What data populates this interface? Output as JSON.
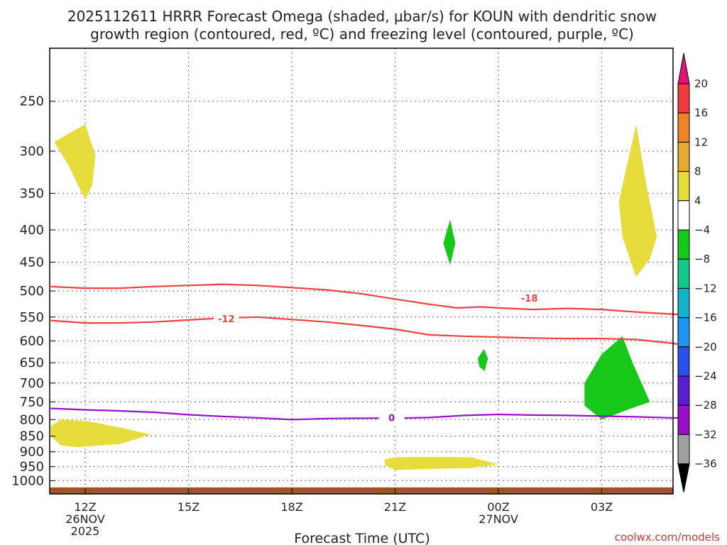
{
  "title_line1": "2025112611 HRRR Forecast Omega (shaded, μbar/s) for KOUN with dendritic snow",
  "title_line2": "growth region (contoured, red, ºC) and freezing level (contoured, purple, ºC)",
  "credit": "coolwx.com/models",
  "colors": {
    "isotherm": "#f04040",
    "freezing": "#9a10c8",
    "ground": "#a0522d",
    "omega_pos": "#e6dc3c",
    "omega_neg": "#18c818"
  },
  "chart_data": {
    "type": "heatmap",
    "title": "2025112611 HRRR Forecast Omega (shaded, μbar/s) for KOUN with dendritic snow growth region (contoured, red, ºC) and freezing level (contoured, purple, ºC)",
    "xlabel": "Forecast Time (UTC)",
    "ylabel": "",
    "xlim": [
      11,
      29.5
    ],
    "ylim": [
      1050,
      200
    ],
    "grid": true,
    "x_ticks": [
      {
        "x": 12,
        "label": "12Z",
        "sub1": "26NOV",
        "sub2": "2025"
      },
      {
        "x": 15,
        "label": "15Z",
        "sub1": "",
        "sub2": ""
      },
      {
        "x": 18,
        "label": "18Z",
        "sub1": "",
        "sub2": ""
      },
      {
        "x": 21,
        "label": "21Z",
        "sub1": "",
        "sub2": ""
      },
      {
        "x": 24,
        "label": "00Z",
        "sub1": "27NOV",
        "sub2": ""
      },
      {
        "x": 27,
        "label": "03Z",
        "sub1": "",
        "sub2": ""
      }
    ],
    "y_ticks": [
      250,
      300,
      350,
      400,
      450,
      500,
      550,
      600,
      650,
      700,
      750,
      800,
      850,
      900,
      950,
      1000
    ],
    "colorbar": {
      "levels": [
        20,
        16,
        12,
        8,
        4,
        -4,
        -8,
        -12,
        -16,
        -20,
        -24,
        -28,
        -32,
        -36
      ],
      "colors": [
        "#f03c3c",
        "#f08228",
        "#e6aa32",
        "#e6dc3c",
        "#ffffff",
        "#18c818",
        "#14c88c",
        "#14b4c8",
        "#1e96f0",
        "#2850f0",
        "#5a1ed2",
        "#9a10c8",
        "#a0a0a0"
      ],
      "top_color": "#e0147a",
      "bottom_color": "#000000"
    },
    "contours": [
      {
        "level": -18,
        "color": "#f04040",
        "label": "-18",
        "label_at": [
          24.9,
          513
        ],
        "points": [
          [
            11,
            492
          ],
          [
            12,
            495
          ],
          [
            13,
            495
          ],
          [
            14,
            492
          ],
          [
            15,
            490
          ],
          [
            16,
            488
          ],
          [
            17,
            490
          ],
          [
            18,
            494
          ],
          [
            19,
            498
          ],
          [
            20,
            505
          ],
          [
            21,
            515
          ],
          [
            22,
            525
          ],
          [
            22.8,
            532
          ],
          [
            23.5,
            530
          ],
          [
            24,
            532
          ],
          [
            25,
            535
          ],
          [
            26,
            533
          ],
          [
            27,
            535
          ],
          [
            28,
            540
          ],
          [
            29,
            544
          ],
          [
            29.5,
            546
          ]
        ]
      },
      {
        "level": -12,
        "color": "#f04040",
        "label": "-12",
        "label_at": [
          16.1,
          553
        ],
        "points": [
          [
            11,
            557
          ],
          [
            12,
            562
          ],
          [
            13,
            562
          ],
          [
            14,
            560
          ],
          [
            15,
            556
          ],
          [
            16,
            552
          ],
          [
            17,
            550
          ],
          [
            18,
            555
          ],
          [
            19,
            560
          ],
          [
            20,
            567
          ],
          [
            21,
            575
          ],
          [
            22,
            587
          ],
          [
            23,
            590
          ],
          [
            24,
            592
          ],
          [
            25,
            594
          ],
          [
            26,
            595
          ],
          [
            27,
            595
          ],
          [
            28,
            597
          ],
          [
            29,
            605
          ],
          [
            29.5,
            610
          ]
        ]
      },
      {
        "level": 0,
        "color": "#9a10c8",
        "label": "0",
        "label_at": [
          20.9,
          794
        ],
        "points": [
          [
            11,
            768
          ],
          [
            12,
            772
          ],
          [
            13,
            775
          ],
          [
            14,
            779
          ],
          [
            15,
            786
          ],
          [
            16,
            791
          ],
          [
            17,
            795
          ],
          [
            18,
            800
          ],
          [
            19,
            797
          ],
          [
            20,
            796
          ],
          [
            21,
            796
          ],
          [
            22,
            794
          ],
          [
            23,
            788
          ],
          [
            24,
            785
          ],
          [
            25,
            787
          ],
          [
            26,
            788
          ],
          [
            27,
            790
          ],
          [
            28,
            792
          ],
          [
            29,
            795
          ],
          [
            29.5,
            796
          ]
        ]
      }
    ],
    "shaded_areas": [
      {
        "level": 4,
        "points": [
          [
            11.1,
            290
          ],
          [
            12,
            272
          ],
          [
            12.3,
            305
          ],
          [
            12.2,
            340
          ],
          [
            12,
            358
          ],
          [
            11.5,
            315
          ]
        ]
      },
      {
        "level": 4,
        "points": [
          [
            28,
            272
          ],
          [
            28.3,
            340
          ],
          [
            28.6,
            410
          ],
          [
            28.4,
            445
          ],
          [
            28,
            475
          ],
          [
            27.6,
            410
          ],
          [
            27.5,
            360
          ]
        ]
      },
      {
        "level": 4,
        "points": [
          [
            11,
            820
          ],
          [
            11.3,
            800
          ],
          [
            12.1,
            805
          ],
          [
            13,
            823
          ],
          [
            13.9,
            845
          ],
          [
            13,
            875
          ],
          [
            11.8,
            885
          ],
          [
            11.3,
            880
          ],
          [
            11,
            850
          ]
        ]
      },
      {
        "level": 4,
        "points": [
          [
            20.7,
            925
          ],
          [
            21,
            918
          ],
          [
            22,
            917
          ],
          [
            23.2,
            918
          ],
          [
            24,
            942
          ],
          [
            23.2,
            955
          ],
          [
            22,
            958
          ],
          [
            21,
            962
          ],
          [
            20.7,
            945
          ]
        ]
      },
      {
        "level": -4,
        "points": [
          [
            22.4,
            420
          ],
          [
            22.6,
            385
          ],
          [
            22.75,
            420
          ],
          [
            22.6,
            455
          ]
        ]
      },
      {
        "level": -4,
        "points": [
          [
            23.4,
            640
          ],
          [
            23.58,
            618
          ],
          [
            23.7,
            640
          ],
          [
            23.6,
            670
          ],
          [
            23.45,
            660
          ]
        ]
      },
      {
        "level": -4,
        "points": [
          [
            26.5,
            700
          ],
          [
            27,
            630
          ],
          [
            27.6,
            590
          ],
          [
            27.9,
            650
          ],
          [
            28.4,
            750
          ],
          [
            27.8,
            770
          ],
          [
            27,
            800
          ],
          [
            26.5,
            760
          ]
        ]
      }
    ],
    "ground_level": 1000
  }
}
